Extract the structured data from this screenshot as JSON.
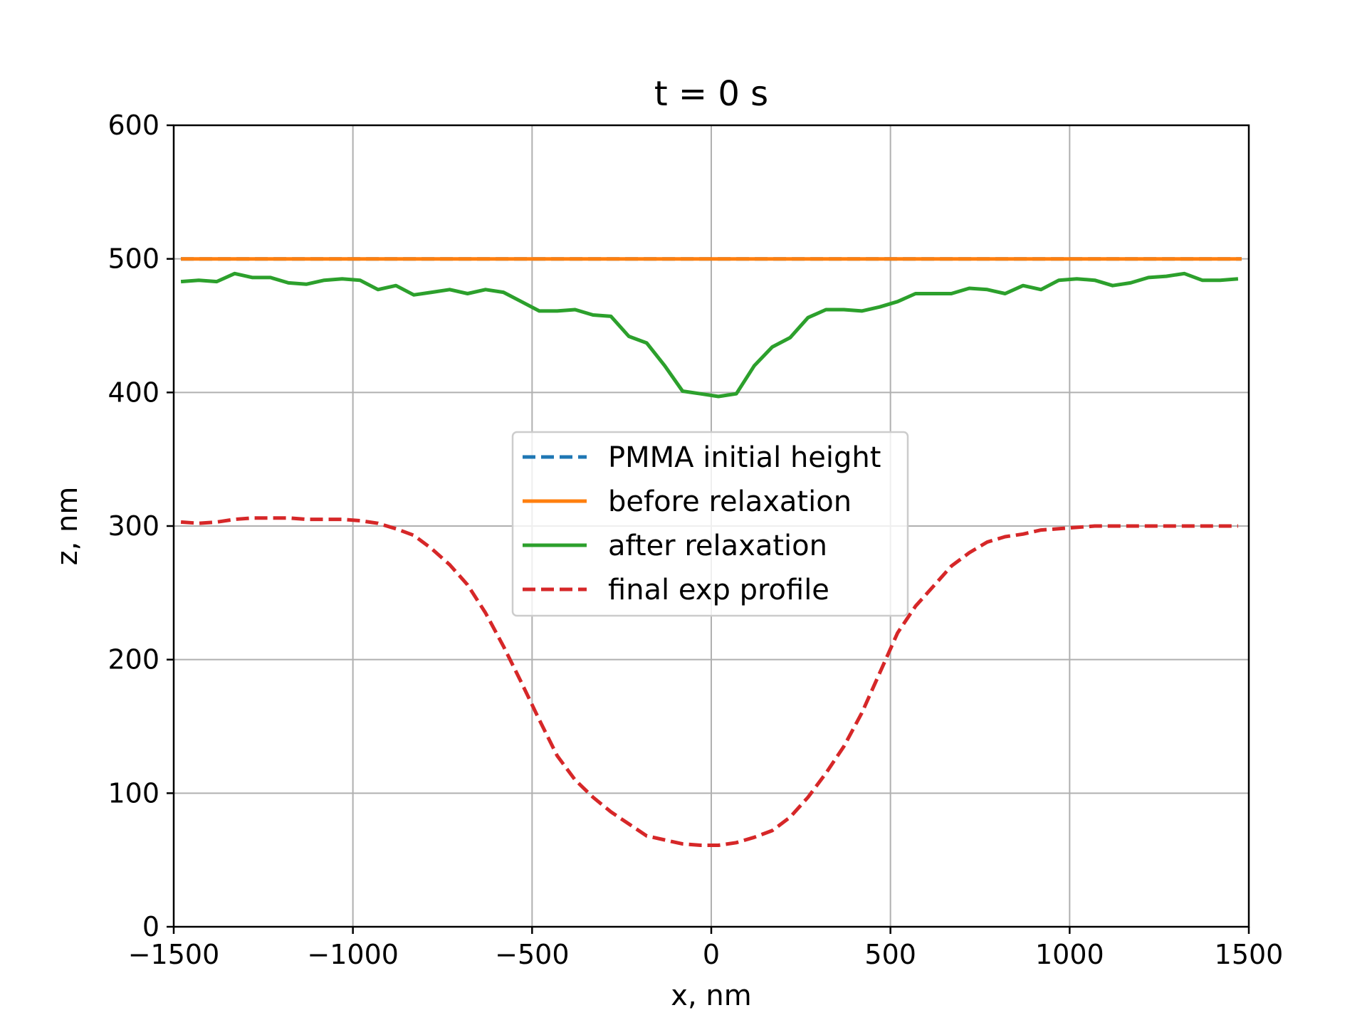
{
  "chart_data": {
    "type": "line",
    "title": "t = 0 s",
    "xlabel": "x, nm",
    "ylabel": "z, nm",
    "xlim": [
      -1500,
      1500
    ],
    "ylim": [
      0,
      600
    ],
    "xticks": [
      -1500,
      -1000,
      -500,
      0,
      500,
      1000,
      1500
    ],
    "xtick_labels": [
      "−1500",
      "−1000",
      "−500",
      "0",
      "500",
      "1000",
      "1500"
    ],
    "yticks": [
      0,
      100,
      200,
      300,
      400,
      500,
      600
    ],
    "ytick_labels": [
      "0",
      "100",
      "200",
      "300",
      "400",
      "500",
      "600"
    ],
    "grid": true,
    "legend_position": "center",
    "series": [
      {
        "name": "PMMA initial height",
        "color": "#1f77b4",
        "style": "dashed",
        "x": [
          -1480,
          1480
        ],
        "y": [
          500,
          500
        ]
      },
      {
        "name": "before relaxation",
        "color": "#ff7f0e",
        "style": "solid",
        "x": [
          -1480,
          1480
        ],
        "y": [
          500,
          500
        ]
      },
      {
        "name": "after relaxation",
        "color": "#2ca02c",
        "style": "solid",
        "x": [
          -1480,
          -1430,
          -1380,
          -1330,
          -1280,
          -1230,
          -1180,
          -1130,
          -1080,
          -1030,
          -980,
          -930,
          -880,
          -830,
          -780,
          -730,
          -680,
          -630,
          -580,
          -530,
          -480,
          -430,
          -380,
          -330,
          -280,
          -230,
          -180,
          -130,
          -80,
          -30,
          20,
          70,
          120,
          170,
          220,
          270,
          320,
          370,
          420,
          470,
          520,
          570,
          620,
          670,
          720,
          770,
          820,
          870,
          920,
          970,
          1020,
          1070,
          1120,
          1170,
          1220,
          1270,
          1320,
          1370,
          1420,
          1470
        ],
        "y": [
          483,
          484,
          483,
          489,
          486,
          486,
          482,
          481,
          484,
          485,
          484,
          477,
          480,
          473,
          475,
          477,
          474,
          477,
          475,
          468,
          461,
          461,
          462,
          458,
          457,
          442,
          437,
          420,
          401,
          399,
          397,
          399,
          420,
          434,
          441,
          456,
          462,
          462,
          461,
          464,
          468,
          474,
          474,
          474,
          478,
          477,
          474,
          480,
          477,
          484,
          485,
          484,
          480,
          482,
          486,
          487,
          489,
          484,
          484,
          485
        ]
      },
      {
        "name": "final exp profile",
        "color": "#d62728",
        "style": "dashed",
        "x": [
          -1480,
          -1430,
          -1380,
          -1330,
          -1280,
          -1230,
          -1180,
          -1130,
          -1080,
          -1030,
          -980,
          -930,
          -880,
          -830,
          -780,
          -730,
          -680,
          -630,
          -580,
          -530,
          -480,
          -430,
          -380,
          -330,
          -280,
          -230,
          -180,
          -130,
          -80,
          -30,
          20,
          70,
          120,
          170,
          220,
          270,
          320,
          370,
          420,
          470,
          520,
          570,
          620,
          670,
          720,
          770,
          820,
          870,
          920,
          970,
          1020,
          1070,
          1120,
          1170,
          1220,
          1270,
          1320,
          1370,
          1420,
          1470
        ],
        "y": [
          303,
          302,
          303,
          305,
          306,
          306,
          306,
          305,
          305,
          305,
          304,
          302,
          298,
          293,
          283,
          271,
          256,
          235,
          210,
          183,
          155,
          128,
          110,
          97,
          86,
          77,
          68,
          65,
          62,
          61,
          61,
          63,
          67,
          72,
          82,
          97,
          115,
          135,
          160,
          190,
          220,
          240,
          255,
          270,
          280,
          288,
          292,
          294,
          297,
          298,
          299,
          300,
          300,
          300,
          300,
          300,
          300,
          300,
          300,
          300
        ]
      }
    ]
  }
}
